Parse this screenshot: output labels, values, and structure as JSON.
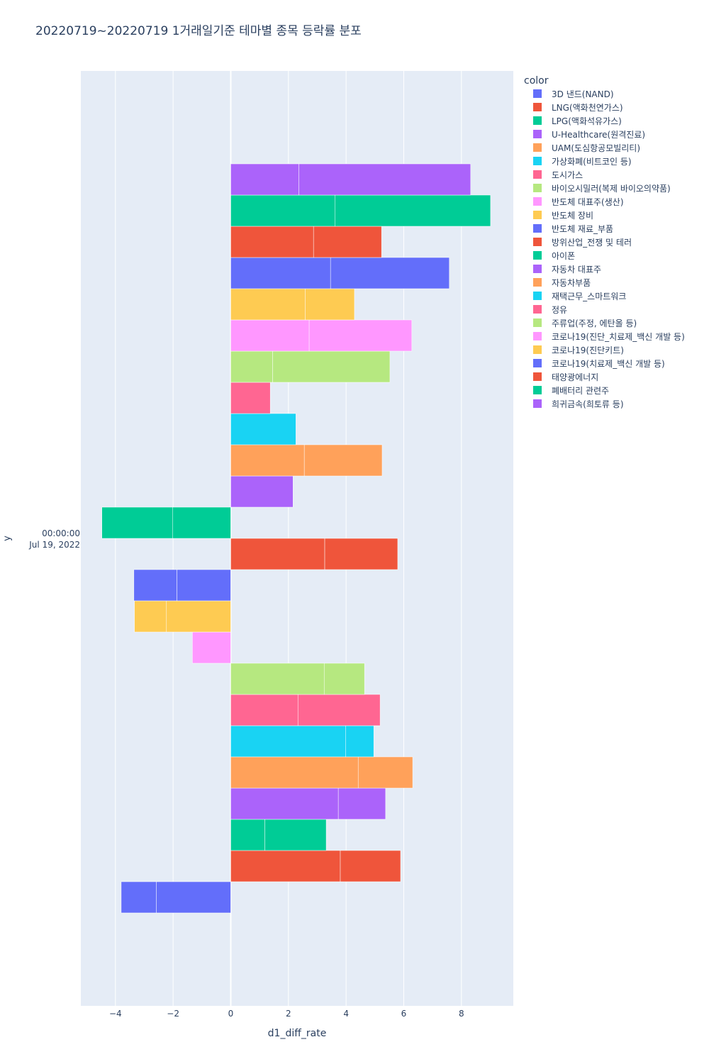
{
  "chart_data": {
    "type": "bar",
    "orientation": "horizontal",
    "barmode": "relative",
    "title": "20220719~20220719 1거래일기준 테마별 종목 등락률 분포",
    "xlabel": "d1_diff_rate",
    "ylabel": "y",
    "y_tick_label": [
      "00:00:00",
      "Jul 19, 2022"
    ],
    "xlim": [
      -5.2,
      9.8
    ],
    "x_ticks": [
      -4,
      -2,
      0,
      2,
      4,
      6,
      8
    ],
    "x_tick_labels": [
      "−4",
      "−2",
      "0",
      "2",
      "4",
      "6",
      "8"
    ],
    "grid": true,
    "legend_title": "color",
    "legend_position": "right",
    "series": [
      {
        "name": "3D 낸드(NAND)",
        "color": "#636efa",
        "values": [
          -2.58,
          -1.22
        ]
      },
      {
        "name": "LNG(액화천연가스)",
        "color": "#ef553b",
        "values": [
          3.8,
          2.09
        ]
      },
      {
        "name": "LPG(액화석유가스)",
        "color": "#00cc96",
        "values": [
          1.18,
          2.13
        ]
      },
      {
        "name": "U-Healthcare(원격진료)",
        "color": "#ab63fa",
        "values": [
          3.73,
          1.64
        ]
      },
      {
        "name": "UAM(도심항공모빌리티)",
        "color": "#ffa15a",
        "values": [
          4.42,
          1.89
        ]
      },
      {
        "name": "가상화폐(비트코인 등)",
        "color": "#19d3f3",
        "values": [
          3.98,
          0.98
        ]
      },
      {
        "name": "도시가스",
        "color": "#ff6692",
        "values": [
          2.33,
          2.85
        ]
      },
      {
        "name": "바이오시밀러(복제 바이오의약품)",
        "color": "#b6e880",
        "values": [
          3.24,
          1.4
        ]
      },
      {
        "name": "반도체 대표주(생산)",
        "color": "#ff97ff",
        "values": [
          -1.33
        ]
      },
      {
        "name": "반도체 장비",
        "color": "#fecb52",
        "values": [
          -2.23,
          -1.11
        ]
      },
      {
        "name": "반도체 재료_부품",
        "color": "#636efa",
        "values": [
          -1.87,
          -1.49
        ]
      },
      {
        "name": "방위산업_전쟁 및 테러",
        "color": "#ef553b",
        "values": [
          3.26,
          2.53
        ]
      },
      {
        "name": "아이폰",
        "color": "#00cc96",
        "values": [
          -2.01,
          -2.46
        ]
      },
      {
        "name": "자동차 대표주",
        "color": "#ab63fa",
        "values": [
          2.16
        ]
      },
      {
        "name": "자동차부품",
        "color": "#ffa15a",
        "values": [
          2.55,
          2.7
        ]
      },
      {
        "name": "재택근무_스마트워크",
        "color": "#19d3f3",
        "values": [
          2.26
        ]
      },
      {
        "name": "정유",
        "color": "#ff6692",
        "values": [
          1.37
        ]
      },
      {
        "name": "주류업(주정, 에탄올 등)",
        "color": "#b6e880",
        "values": [
          1.45,
          4.07
        ]
      },
      {
        "name": "코로나19(진단_치료제_백신 개발 등)",
        "color": "#ff97ff",
        "values": [
          2.72,
          3.56
        ]
      },
      {
        "name": "코로나19(진단키트)",
        "color": "#fecb52",
        "values": [
          2.58,
          1.71
        ]
      },
      {
        "name": "코로나19(치료제_백신 개발 등)",
        "color": "#636efa",
        "values": [
          3.46,
          4.12
        ]
      },
      {
        "name": "태양광에너지",
        "color": "#ef553b",
        "values": [
          2.87,
          2.36
        ]
      },
      {
        "name": "폐배터리 관련주",
        "color": "#00cc96",
        "values": [
          3.61,
          5.4
        ]
      },
      {
        "name": "희귀금속(희토류 등)",
        "color": "#ab63fa",
        "values": [
          2.36,
          5.96
        ]
      }
    ]
  }
}
